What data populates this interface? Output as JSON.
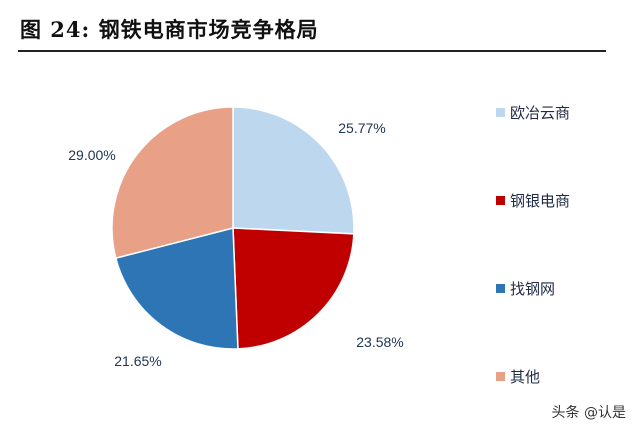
{
  "title": "图  24:  钢铁电商市场竞争格局",
  "chart_data": {
    "type": "pie",
    "title": "",
    "slices": [
      {
        "name": "欧冶云商",
        "value": 25.77,
        "label": "25.77%",
        "color": "#bdd7ee"
      },
      {
        "name": "钢银电商",
        "value": 23.58,
        "label": "23.58%",
        "color": "#c00000"
      },
      {
        "name": "找钢网",
        "value": 21.65,
        "label": "21.65%",
        "color": "#2e75b6"
      },
      {
        "name": "其他",
        "value": 29.0,
        "label": "29.00%",
        "color": "#e8a086"
      }
    ],
    "legend_placement": "right",
    "start_angle": "12 o'clock, clockwise"
  },
  "watermark": "头条 @认是"
}
